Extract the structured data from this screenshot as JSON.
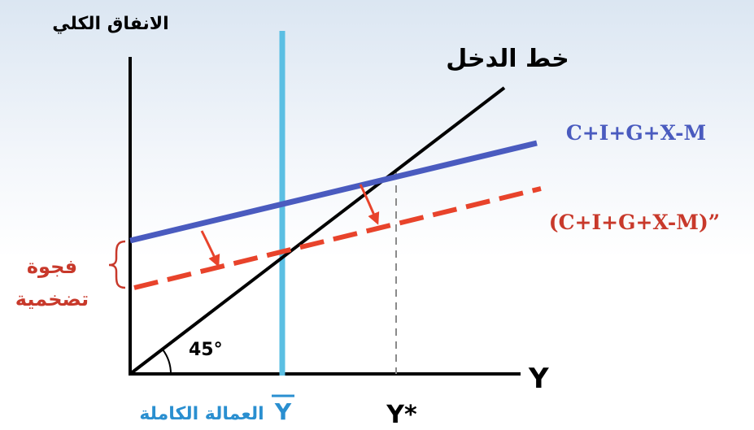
{
  "y_axis_label": "الانفاق الكلي",
  "x_axis_label": "Y",
  "income_line_label": "خط الدخل",
  "aggregate_expenditure_label": "C+I+G+X-M",
  "reduced_expenditure_label": "(C+I+G+X-M)”",
  "inflationary_gap_label_line1": "فجوة",
  "inflationary_gap_label_line2": "تضخمية",
  "angle_label": "45°",
  "full_employment_symbol": "Y",
  "full_employment_label": "العمالة الكاملة",
  "equilibrium_income_label": "Y*",
  "colors": {
    "income_line": "#000000",
    "aggregate_expenditure": "#4a5bbf",
    "reduced_expenditure": "#e8432b",
    "full_employment_line": "#5bbfe3",
    "gap_label": "#c8392b",
    "full_employment_text": "#2a8fd0",
    "equilibrium_guide": "#8a8a8a"
  }
}
